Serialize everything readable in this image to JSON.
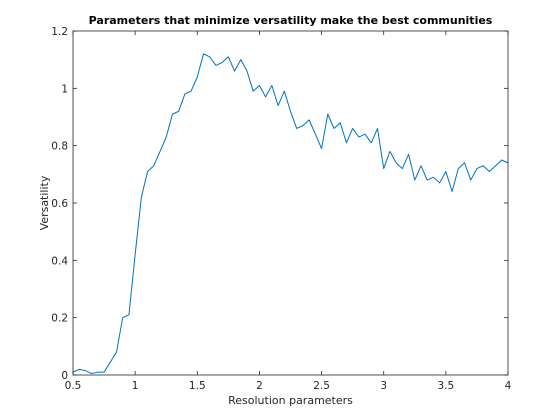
{
  "chart_data": {
    "type": "line",
    "title": "Parameters that minimize versatility make the best communities",
    "xlabel": "Resolution parameters",
    "ylabel": "Versatility",
    "xlim": [
      0.5,
      4
    ],
    "ylim": [
      0,
      1.2
    ],
    "xticks": [
      "0.5",
      "1",
      "1.5",
      "2",
      "2.5",
      "3",
      "3.5",
      "4"
    ],
    "yticks": [
      "0",
      "0.2",
      "0.4",
      "0.6",
      "0.8",
      "1",
      "1.2"
    ],
    "grid": false,
    "series": [
      {
        "color": "#0072BD",
        "x": [
          0.5,
          0.55,
          0.6,
          0.65,
          0.7,
          0.75,
          0.8,
          0.85,
          0.9,
          0.95,
          1.0,
          1.05,
          1.1,
          1.15,
          1.2,
          1.25,
          1.3,
          1.35,
          1.4,
          1.45,
          1.5,
          1.55,
          1.6,
          1.65,
          1.7,
          1.75,
          1.8,
          1.85,
          1.9,
          1.95,
          2.0,
          2.05,
          2.1,
          2.15,
          2.2,
          2.25,
          2.3,
          2.35,
          2.4,
          2.45,
          2.5,
          2.55,
          2.6,
          2.65,
          2.7,
          2.75,
          2.8,
          2.85,
          2.9,
          2.95,
          3.0,
          3.05,
          3.1,
          3.15,
          3.2,
          3.25,
          3.3,
          3.35,
          3.4,
          3.45,
          3.5,
          3.55,
          3.6,
          3.65,
          3.7,
          3.75,
          3.8,
          3.85,
          3.9,
          3.95,
          4.0
        ],
        "values": [
          0.01,
          0.02,
          0.015,
          0.005,
          0.01,
          0.01,
          0.045,
          0.08,
          0.2,
          0.21,
          0.42,
          0.62,
          0.71,
          0.73,
          0.78,
          0.83,
          0.91,
          0.92,
          0.98,
          0.99,
          1.04,
          1.12,
          1.11,
          1.08,
          1.09,
          1.11,
          1.06,
          1.1,
          1.06,
          0.99,
          1.01,
          0.97,
          1.01,
          0.94,
          0.99,
          0.92,
          0.86,
          0.87,
          0.89,
          0.84,
          0.79,
          0.91,
          0.86,
          0.88,
          0.81,
          0.86,
          0.83,
          0.84,
          0.81,
          0.86,
          0.72,
          0.78,
          0.74,
          0.72,
          0.77,
          0.68,
          0.73,
          0.68,
          0.69,
          0.67,
          0.71,
          0.64,
          0.72,
          0.74,
          0.68,
          0.72,
          0.73,
          0.71,
          0.73,
          0.75,
          0.74
        ]
      }
    ]
  }
}
